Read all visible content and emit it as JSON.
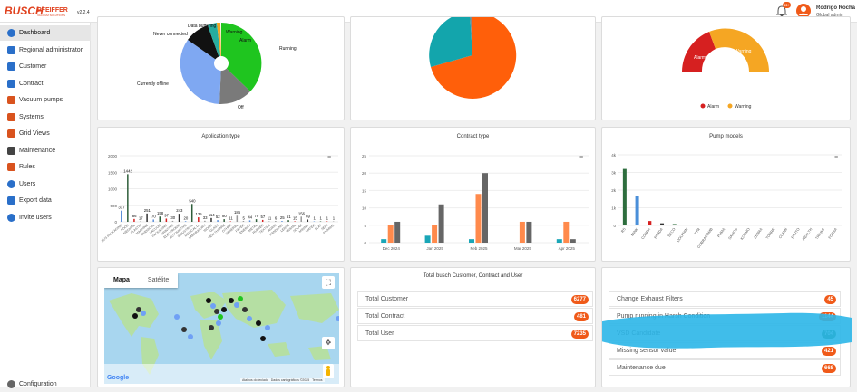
{
  "app": {
    "brand_busch": "BUSCH",
    "brand_pfeiffer": "PFEIFFER",
    "brand_tagline": "VACUUM SOLUTIONS",
    "version": "v2.2.4"
  },
  "user": {
    "name": "Rodrigo Rocha",
    "role": "Global admin",
    "notification_count": "99+"
  },
  "sidebar": {
    "items": [
      {
        "label": "Dashboard",
        "icon": "dashboard-icon"
      },
      {
        "label": "Regional administrator",
        "icon": "regional-admin-icon"
      },
      {
        "label": "Customer",
        "icon": "customer-icon"
      },
      {
        "label": "Contract",
        "icon": "contract-icon"
      },
      {
        "label": "Vacuum pumps",
        "icon": "pump-icon"
      },
      {
        "label": "Systems",
        "icon": "systems-icon"
      },
      {
        "label": "Grid Views",
        "icon": "grid-icon"
      },
      {
        "label": "Maintenance",
        "icon": "maintenance-icon"
      },
      {
        "label": "Rules",
        "icon": "rules-icon"
      },
      {
        "label": "Users",
        "icon": "users-icon"
      },
      {
        "label": "Export data",
        "icon": "export-icon"
      },
      {
        "label": "Invite users",
        "icon": "invite-icon"
      }
    ],
    "configuration": "Configuration"
  },
  "status_pie": {
    "labels": [
      "Data buffering",
      "Warning",
      "Alarm",
      "Running",
      "Off",
      "Currently offline",
      "Never connected"
    ],
    "colors": {
      "running": "#1fc51f",
      "off": "#7a7a7a",
      "offline": "#7fa8f2",
      "never": "#111111",
      "buffering": "#27ad9f",
      "warning": "#f5a623",
      "alarm": "#d62020"
    }
  },
  "gauge": {
    "legend_alarm": "Alarm",
    "legend_warning": "Warning"
  },
  "cards": {
    "application_type": "Application type",
    "contract_type": "Contract type",
    "pump_models": "Pump models",
    "totals_title": "Total busch Customer, Contract and User"
  },
  "chart_data": [
    {
      "type": "bar",
      "title": "Application type",
      "ylim": [
        0,
        2000
      ],
      "yticks": [
        "0",
        "500",
        "1000",
        "1500",
        "2000"
      ],
      "values": [
        337,
        1442,
        86,
        17,
        251,
        70,
        158,
        97,
        30,
        243,
        20,
        540,
        135,
        33,
        114,
        52,
        80,
        11,
        185,
        5,
        44,
        79,
        57,
        11,
        6,
        25,
        51,
        15,
        156,
        69,
        1,
        1,
        1,
        1
      ],
      "colors_hint": [
        "#5b8fd9",
        "#2e5e3a",
        "#d62020",
        "#999999",
        "#333333"
      ],
      "categories": [
        "BUS PACKAGING",
        "FOOD",
        "MEDICAL",
        "PLASTIC",
        "MACHINE",
        "CHEMICAL",
        "VACUUM",
        "PACKAGING",
        "PRINTING",
        "ELECTRONIC",
        "AUTOMOTIVE",
        "INDUSTRIAL",
        "MEDICAL D.",
        "LABORATORY",
        "WOOD",
        "GLASS",
        "HEALTHCARE",
        "OTHER",
        "GENERAL",
        "PAPER",
        "ENERGY",
        "METAL",
        "RUBBER",
        "TEXTILE",
        "AGRIC",
        "HANDLING",
        "LENSE",
        "ANIMAL",
        "SOLAR",
        "MINING",
        "WATER",
        "FLAT",
        "SEMI",
        "PHARMA"
      ]
    },
    {
      "type": "bar",
      "title": "Contract type",
      "categories": [
        "Dec 2024",
        "Jan 2025",
        "Feb 2025",
        "Mar 2025",
        "Apr 2025"
      ],
      "ylim": [
        0,
        25
      ],
      "yticks": [
        "0",
        "5",
        "10",
        "15",
        "20",
        "25"
      ],
      "series": [
        {
          "color": "#1aa6b7",
          "values": [
            1,
            2,
            1,
            0,
            1
          ]
        },
        {
          "color": "#ff8a4c",
          "values": [
            5,
            5,
            14,
            6,
            6
          ]
        },
        {
          "color": "#666666",
          "values": [
            6,
            11,
            20,
            6,
            1
          ]
        }
      ]
    },
    {
      "type": "bar",
      "title": "Pump models",
      "ylim": [
        0,
        4000
      ],
      "yticks": [
        "0",
        "1k",
        "2k",
        "3k",
        "4k"
      ],
      "categories": [
        "R5",
        "MINK",
        "COBRA",
        "PANDA",
        "SECO",
        "DOLPHIN",
        "TYR",
        "COBRACOMB",
        "PUMA",
        "SAMOS",
        "KOSMO",
        "ZEBRA",
        "TORRE",
        "COMBI",
        "FAUTO",
        "HEALTH",
        "TRIVAC",
        "FOSSA"
      ],
      "values": [
        3200,
        1650,
        250,
        120,
        80,
        40,
        10,
        5,
        5,
        5,
        5,
        5,
        0,
        0,
        0,
        0,
        0,
        0
      ],
      "colors": [
        "#2e6e3e",
        "#4a8fd9",
        "#d62020",
        "#333333",
        "#2e6e3e",
        "#4a8fd9",
        "#aaaaaa",
        "#aaaaaa",
        "#aaaaaa",
        "#aaaaaa",
        "#aaaaaa",
        "#aaaaaa",
        "#aaaaaa",
        "#aaaaaa",
        "#aaaaaa",
        "#aaaaaa",
        "#aaaaaa",
        "#aaaaaa"
      ]
    }
  ],
  "map": {
    "tab_map": "Mapa",
    "tab_satellite": "Satélite",
    "google": "Google",
    "footer": [
      "Atalhos do teclado",
      "Dados cartográficos ©2025",
      "Termos"
    ]
  },
  "totals": [
    {
      "label": "Total Customer",
      "value": "6277"
    },
    {
      "label": "Total Contract",
      "value": "481"
    },
    {
      "label": "Total User",
      "value": "7235"
    }
  ],
  "alerts": [
    {
      "label": "Change Exhaust Filters",
      "value": "45",
      "color": "orange"
    },
    {
      "label": "Pump running in Harsh Condition",
      "value": "1144",
      "color": "orange"
    },
    {
      "label": "VSD Candidate",
      "value": "704",
      "color": "green"
    },
    {
      "label": "Missing sensor value",
      "value": "421",
      "color": "orange"
    },
    {
      "label": "Maintenance due",
      "value": "668",
      "color": "orange"
    }
  ]
}
